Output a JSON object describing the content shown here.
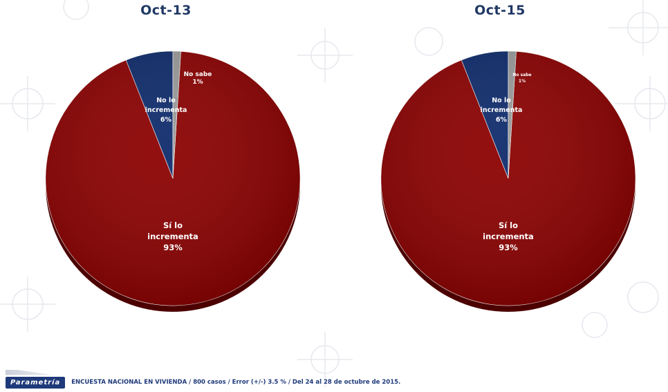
{
  "chart_data": [
    {
      "type": "pie",
      "title": "Oct-13",
      "slices": [
        {
          "label_lines": [
            "Sí lo",
            "incrementa",
            "93%"
          ],
          "value": 93,
          "color": "#8b0000"
        },
        {
          "label_lines": [
            "No lo",
            "incrementa",
            "6%"
          ],
          "value": 6,
          "color": "#0d2a6b"
        },
        {
          "label_lines": [
            "No sabe",
            "1%"
          ],
          "value": 1,
          "color": "#9a9a9a"
        }
      ]
    },
    {
      "type": "pie",
      "title": "Oct-15",
      "slices": [
        {
          "label_lines": [
            "Sí lo",
            "incrementa",
            "93%"
          ],
          "value": 93,
          "color": "#8b0000"
        },
        {
          "label_lines": [
            "No lo",
            "incrementa",
            "6%"
          ],
          "value": 6,
          "color": "#0d2a6b"
        },
        {
          "label_lines": [
            "No sabe",
            "1%"
          ],
          "value": 1,
          "color": "#9a9a9a"
        }
      ]
    }
  ],
  "footer": {
    "logo": "Parametría",
    "note": "ENCUESTA NACIONAL EN VIVIENDA / 800 casos / Error (+/-) 3.5 % / Del 24 al 28 de octubre de 2015."
  }
}
